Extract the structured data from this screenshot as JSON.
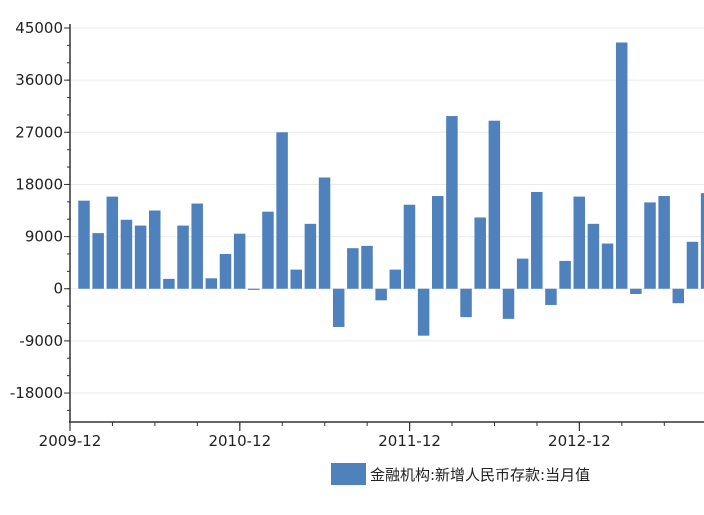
{
  "chart_data": {
    "type": "bar",
    "title": "",
    "xlabel": "",
    "ylabel": "",
    "ylim": [
      -23000,
      45000
    ],
    "yticks": [
      45000,
      36000,
      27000,
      18000,
      9000,
      0,
      -9000,
      -18000
    ],
    "ytick_labels": [
      "45000",
      "36000",
      "27000",
      "18000",
      "9000",
      "0",
      "-9000",
      "-18000"
    ],
    "xtick_labels": [
      {
        "label": "2009-12",
        "index": 0
      },
      {
        "label": "2010-12",
        "index": 12
      },
      {
        "label": "2011-12",
        "index": 24
      },
      {
        "label": "2012-12",
        "index": 36
      }
    ],
    "grid": true,
    "legend_position": "bottom",
    "color": "#4f81bd",
    "series": [
      {
        "name": "金融机构:新增人民币存款:当月值",
        "values": [
          15200,
          9600,
          15900,
          11900,
          10900,
          13500,
          1700,
          10900,
          14700,
          1800,
          6000,
          9500,
          -200,
          13300,
          27000,
          3300,
          11200,
          19200,
          -6600,
          7000,
          7400,
          -2000,
          3300,
          14500,
          -8100,
          16000,
          29800,
          -4900,
          12300,
          29000,
          -5200,
          5200,
          16700,
          -2800,
          4800,
          15900,
          11200,
          7800,
          42500,
          -900,
          14900,
          16000,
          -2500,
          8100,
          16500
        ]
      }
    ]
  }
}
